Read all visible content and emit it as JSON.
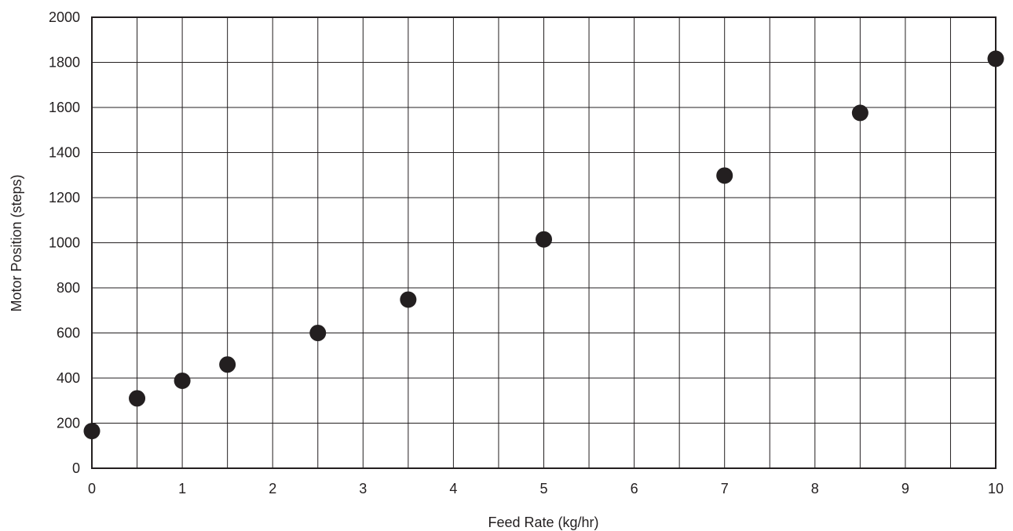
{
  "chart_data": {
    "type": "scatter",
    "title": "",
    "xlabel": "Feed Rate (kg/hr)",
    "ylabel": "Motor Position (steps)",
    "xlim": [
      0,
      10
    ],
    "ylim": [
      0,
      2000
    ],
    "x_ticks": [
      "0",
      "1",
      "2",
      "3",
      "4",
      "5",
      "6",
      "7",
      "8",
      "9",
      "10"
    ],
    "y_ticks": [
      "0",
      "200",
      "400",
      "600",
      "800",
      "1000",
      "1200",
      "1400",
      "1600",
      "1800",
      "2000"
    ],
    "x_gridlines": [
      0,
      0.5,
      1,
      1.5,
      2,
      2.5,
      3,
      3.5,
      4,
      4.5,
      5,
      5.5,
      6,
      6.5,
      7,
      7.5,
      8,
      8.5,
      9,
      9.5,
      10
    ],
    "y_gridlines": [
      0,
      200,
      400,
      600,
      800,
      1000,
      1200,
      1400,
      1600,
      1800,
      2000
    ],
    "grid": true,
    "series": [
      {
        "x": [
          0,
          0.5,
          1,
          1.5,
          2.5,
          3.5,
          5,
          7,
          8.5,
          10
        ],
        "y": [
          165,
          310,
          388,
          460,
          600,
          748,
          1015,
          1298,
          1576,
          1816
        ]
      }
    ],
    "colors": {
      "marker": "#231f20",
      "grid": "#231f20",
      "text": "#231f20"
    }
  }
}
